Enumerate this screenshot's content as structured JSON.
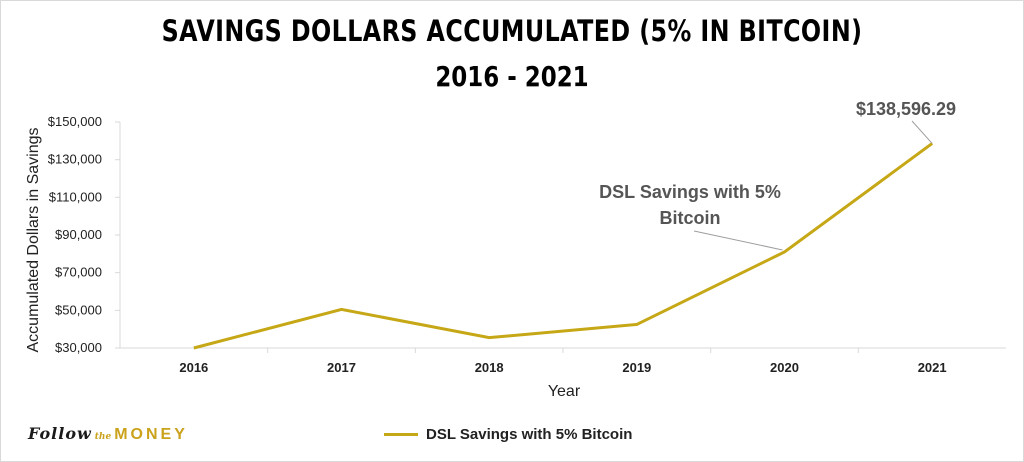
{
  "title": "SAVINGS DOLLARS ACCUMULATED (5% IN BITCOIN)",
  "subtitle": "2016 - 2021",
  "logo": {
    "part1": "Follow",
    "part2": "the",
    "part3": "MONEY"
  },
  "colors": {
    "line": "#c6a716",
    "axis": "#d9d9d9",
    "annotation": "#555555"
  },
  "chart_data": {
    "type": "line",
    "categories": [
      "2016",
      "2017",
      "2018",
      "2019",
      "2020",
      "2021"
    ],
    "series": [
      {
        "name": "DSL Savings with 5% Bitcoin",
        "values": [
          30000,
          50500,
          35500,
          42500,
          81000,
          138596.29
        ]
      }
    ],
    "xlabel": "Year",
    "ylabel": "Accumulated Dollars in Savings",
    "ylim": [
      30000,
      150000
    ],
    "yticks": [
      "$30,000",
      "$50,000",
      "$70,000",
      "$90,000",
      "$110,000",
      "$130,000",
      "$150,000"
    ],
    "yticks_values": [
      30000,
      50000,
      70000,
      90000,
      110000,
      130000,
      150000
    ],
    "grid": false,
    "legend_position": "bottom",
    "annotations": [
      {
        "text_line1": "DSL Savings with 5%",
        "text_line2": "Bitcoin",
        "category": "2020"
      },
      {
        "text": "$138,596.29",
        "category": "2021"
      }
    ]
  }
}
